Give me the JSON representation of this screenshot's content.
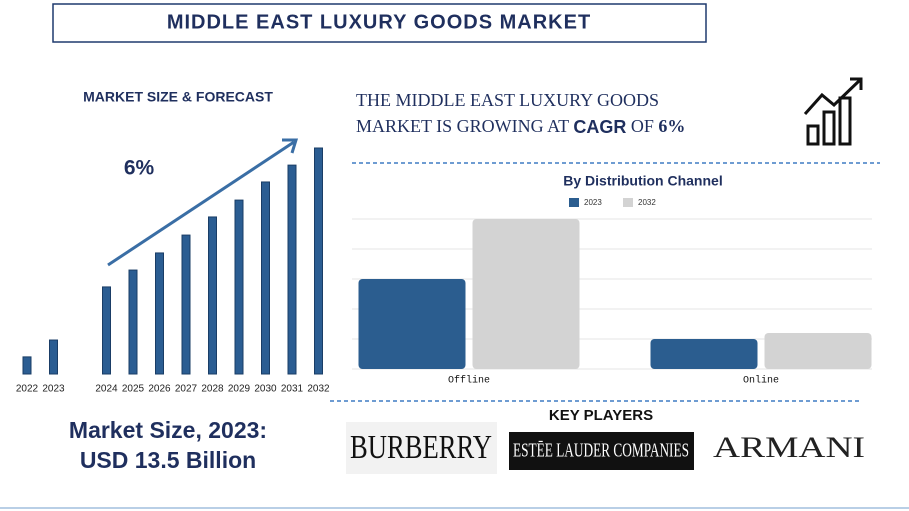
{
  "title": "MIDDLE EAST LUXURY GOODS MARKET",
  "headline": {
    "parts": [
      "THE MIDDLE EAST LUXURY GOODS",
      "MARKET IS GROWING AT",
      "CAGR",
      "OF",
      "6%"
    ]
  },
  "market_size": {
    "line1": "Market Size, 2023:",
    "line2": "USD 13.5 Billion"
  },
  "key_players": {
    "title": "KEY PLAYERS",
    "logos": [
      "BURBERRY",
      "ESTĒE LAUDER COMPANIES",
      "ARMANI"
    ]
  },
  "chart_data": [
    {
      "type": "bar",
      "title": "MARKET SIZE & FORECAST",
      "annotation": "6%",
      "color": "#2b5d92",
      "categories": [
        "2022",
        "2023",
        null,
        "2024",
        "2025",
        "2026",
        "2027",
        "2028",
        "2029",
        "2030",
        "2031",
        "2032"
      ],
      "values": [
        6.8,
        13.5,
        null,
        34.6,
        41.3,
        48.1,
        55.2,
        62.4,
        69.1,
        76.3,
        83.0,
        89.8
      ]
    },
    {
      "type": "grouped-bar",
      "title": "By Distribution Channel",
      "categories": [
        "Offline",
        "Online"
      ],
      "series": [
        {
          "name": "2023",
          "color": "#2b5d8f",
          "values": [
            3,
            1
          ]
        },
        {
          "name": "2032",
          "color": "#d3d3d3",
          "values": [
            5,
            1.2
          ]
        }
      ],
      "ylim": [
        0,
        5
      ],
      "yticks": [
        0,
        1,
        2,
        3,
        4,
        5
      ],
      "grid": true,
      "legend": "top"
    }
  ]
}
